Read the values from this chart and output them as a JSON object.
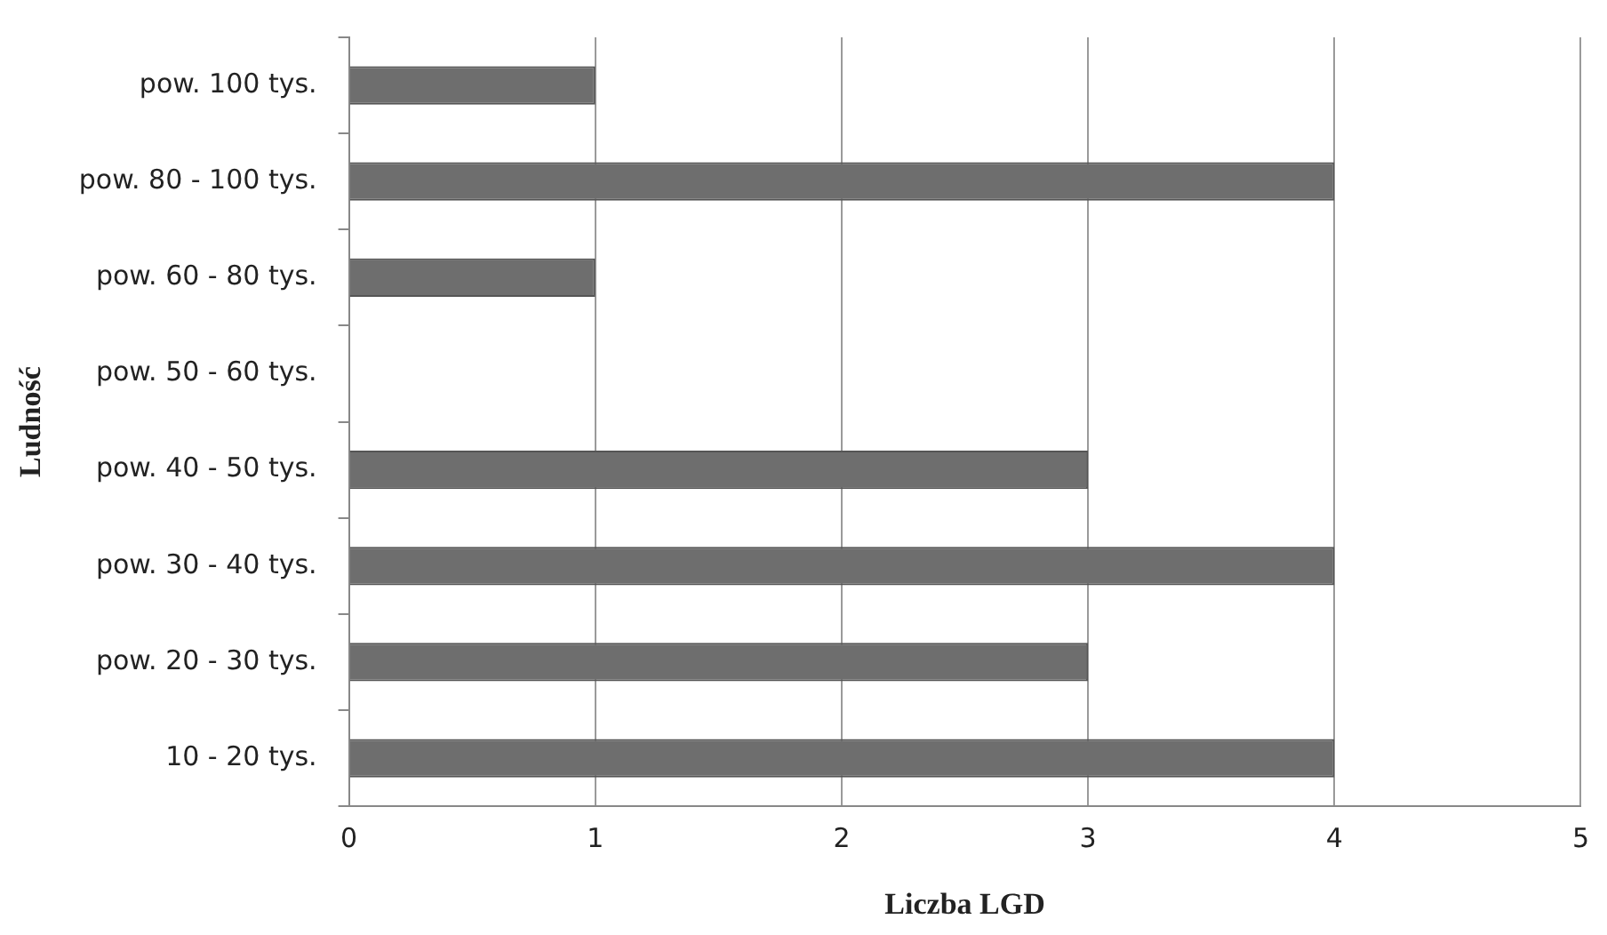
{
  "chart_data": {
    "type": "bar",
    "orientation": "horizontal",
    "categories": [
      "pow. 100 tys.",
      "pow. 80 - 100 tys.",
      "pow. 60 - 80 tys.",
      "pow. 50 - 60 tys.",
      "pow. 40 - 50 tys.",
      "pow. 30 - 40 tys.",
      "pow. 20 - 30 tys.",
      "10 - 20 tys."
    ],
    "values": [
      1,
      4,
      1,
      0,
      3,
      4,
      3,
      4
    ],
    "color": "#6e6e6e",
    "xlim": [
      0,
      5
    ],
    "xticks": [
      0,
      1,
      2,
      3,
      4,
      5
    ],
    "xlabel": "Liczba LGD",
    "ylabel": "Ludność",
    "grid": "x",
    "legend": false
  }
}
